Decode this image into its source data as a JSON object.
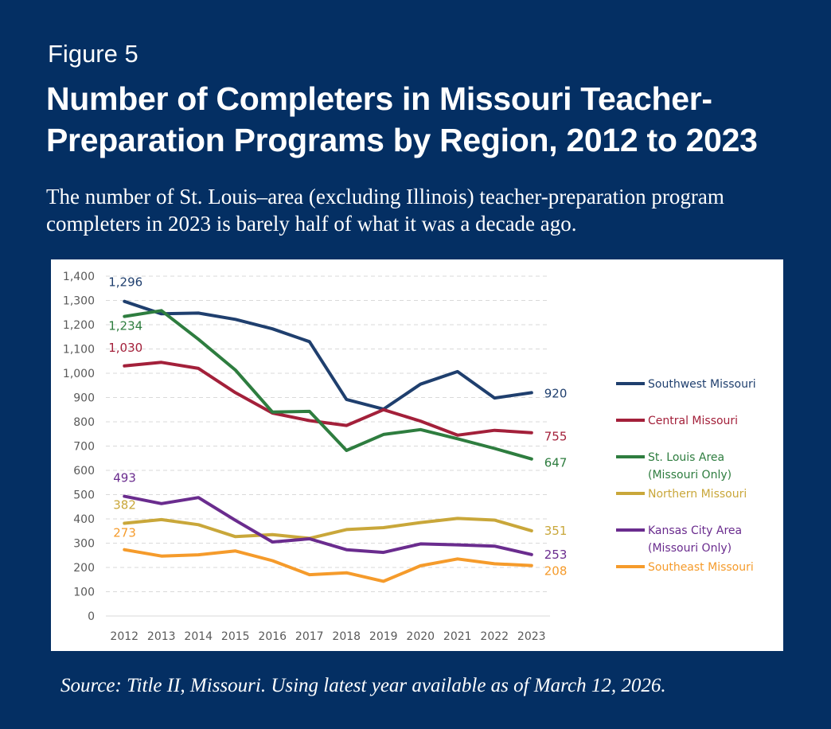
{
  "figure_label": "Figure 5",
  "title": "Number of Completers in Missouri Teacher-Preparation Programs by Region, 2012 to 2023",
  "subtitle": "The number of St. Louis–area (excluding Illinois) teacher-preparation program completers in 2023 is barely half of what it was a decade ago.",
  "source": "Source: Title II, Missouri. Using latest year available as of March 12, 2026.",
  "chart_data": {
    "type": "line",
    "categories": [
      "2012",
      "2013",
      "2014",
      "2015",
      "2016",
      "2017",
      "2018",
      "2019",
      "2020",
      "2021",
      "2022",
      "2023"
    ],
    "ylim": [
      0,
      1400
    ],
    "yticks": [
      0,
      100,
      200,
      300,
      400,
      500,
      600,
      700,
      800,
      900,
      1000,
      1100,
      1200,
      1300,
      1400
    ],
    "ytick_labels": [
      "0",
      "100",
      "200",
      "300",
      "400",
      "500",
      "600",
      "700",
      "800",
      "900",
      "1,000",
      "1,100",
      "1,200",
      "1,300",
      "1,400"
    ],
    "grid": true,
    "legend_position": "right",
    "series": [
      {
        "name": "Southwest Missouri",
        "color": "#1f3f6e",
        "values": [
          1296,
          1245,
          1248,
          1222,
          1183,
          1130,
          892,
          852,
          955,
          1007,
          898,
          920
        ],
        "start_label": "1,296",
        "end_label": "920"
      },
      {
        "name": "Central Missouri",
        "color": "#a3203a",
        "values": [
          1030,
          1045,
          1020,
          920,
          836,
          805,
          785,
          850,
          803,
          745,
          765,
          755
        ],
        "start_label": "1,030",
        "end_label": "755"
      },
      {
        "name": "St. Louis Area (Missouri Only)",
        "color": "#2e7d3f",
        "values": [
          1234,
          1258,
          1140,
          1013,
          840,
          843,
          682,
          748,
          768,
          730,
          690,
          647
        ],
        "start_label": "1,234",
        "end_label": "647"
      },
      {
        "name": "Northern Missouri",
        "color": "#c9a73a",
        "values": [
          382,
          397,
          376,
          327,
          335,
          320,
          356,
          364,
          385,
          402,
          395,
          351
        ],
        "start_label": "382",
        "end_label": "351"
      },
      {
        "name": "Kansas City Area (Missouri Only)",
        "color": "#6a2c8e",
        "values": [
          493,
          463,
          488,
          394,
          305,
          318,
          273,
          262,
          297,
          293,
          288,
          253
        ],
        "start_label": "493",
        "end_label": "253"
      },
      {
        "name": "Southeast Missouri",
        "color": "#f59b2b",
        "values": [
          273,
          247,
          252,
          268,
          228,
          170,
          178,
          143,
          207,
          235,
          215,
          208
        ],
        "start_label": "273",
        "end_label": "208"
      }
    ]
  }
}
